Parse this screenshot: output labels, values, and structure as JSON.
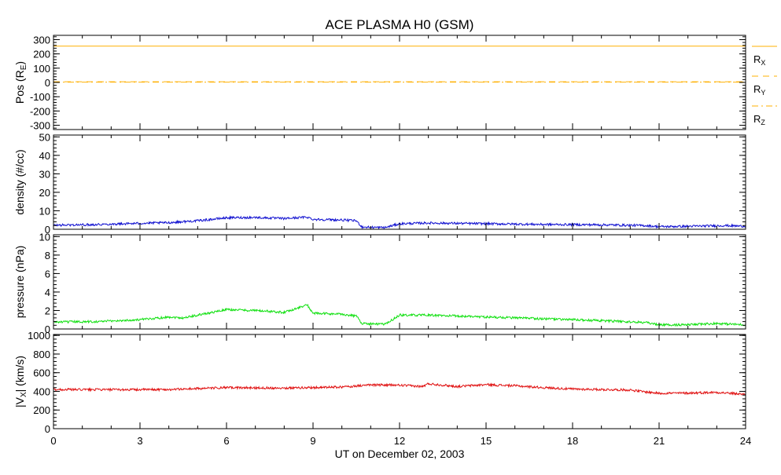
{
  "title": "ACE PLASMA H0 (GSM)",
  "xlabel": "UT on December 02, 2003",
  "colors": {
    "rx": "#ffb000",
    "ry": "#ffb000",
    "rz": "#ffb000",
    "density": "#1010d0",
    "pressure": "#10e010",
    "vx": "#e01010",
    "axes": "#000000"
  },
  "chart_data": [
    {
      "type": "line",
      "id": "pos",
      "ylabel": "Pos (R",
      "ylabel_sub": "E",
      "ylabel_end": ")",
      "xlim": [
        0,
        24
      ],
      "ylim": [
        -330,
        330
      ],
      "yticks": [
        300,
        200,
        100,
        0,
        -100,
        -200,
        -300
      ],
      "legend": "right",
      "series": [
        {
          "name": "R",
          "sub": "X",
          "style": "solid",
          "points": [
            [
              0,
              254
            ],
            [
              24,
              254
            ]
          ]
        },
        {
          "name": "R",
          "sub": "Y",
          "style": "dashed",
          "points": [
            [
              0,
              5
            ],
            [
              24,
              5
            ]
          ]
        },
        {
          "name": "R",
          "sub": "Z",
          "style": "dashdot",
          "points": [
            [
              0,
              2
            ],
            [
              24,
              2
            ]
          ]
        }
      ]
    },
    {
      "type": "line",
      "id": "density",
      "ylabel": "density (#/cc)",
      "xlim": [
        0,
        24
      ],
      "ylim": [
        0,
        51
      ],
      "yticks": [
        50,
        40,
        30,
        20,
        10,
        0
      ],
      "series": [
        {
          "name": "",
          "points": [
            [
              0,
              2.2
            ],
            [
              1,
              2.4
            ],
            [
              2,
              2.8
            ],
            [
              3,
              3.2
            ],
            [
              4,
              3.6
            ],
            [
              5,
              4.6
            ],
            [
              6,
              6.2
            ],
            [
              7,
              6.4
            ],
            [
              8,
              5.8
            ],
            [
              8.8,
              6.6
            ],
            [
              9,
              5.4
            ],
            [
              10,
              5.0
            ],
            [
              10.5,
              4.6
            ],
            [
              10.7,
              1.2
            ],
            [
              11.5,
              0.9
            ],
            [
              12,
              3.0
            ],
            [
              13,
              3.4
            ],
            [
              15,
              3.0
            ],
            [
              17,
              2.6
            ],
            [
              19,
              2.4
            ],
            [
              20.5,
              2.0
            ],
            [
              21,
              1.4
            ],
            [
              22,
              1.6
            ],
            [
              23.3,
              2.0
            ],
            [
              24,
              1.6
            ]
          ]
        }
      ]
    },
    {
      "type": "line",
      "id": "pressure",
      "ylabel": "pressure (nPa)",
      "xlim": [
        0,
        24
      ],
      "ylim": [
        0,
        10.2
      ],
      "yticks": [
        10,
        8,
        6,
        4,
        2,
        0
      ],
      "series": [
        {
          "name": "",
          "points": [
            [
              0,
              0.75
            ],
            [
              1.5,
              0.8
            ],
            [
              3,
              1.0
            ],
            [
              4,
              1.3
            ],
            [
              4.5,
              1.2
            ],
            [
              5,
              1.5
            ],
            [
              6,
              2.1
            ],
            [
              7,
              2.0
            ],
            [
              8,
              1.8
            ],
            [
              8.8,
              2.6
            ],
            [
              9,
              1.7
            ],
            [
              10,
              1.6
            ],
            [
              10.5,
              1.4
            ],
            [
              10.7,
              0.6
            ],
            [
              11.5,
              0.5
            ],
            [
              12,
              1.5
            ],
            [
              13,
              1.5
            ],
            [
              15,
              1.3
            ],
            [
              17,
              1.1
            ],
            [
              19,
              0.9
            ],
            [
              20.5,
              0.7
            ],
            [
              21,
              0.45
            ],
            [
              22,
              0.45
            ],
            [
              23,
              0.6
            ],
            [
              24,
              0.45
            ]
          ]
        }
      ]
    },
    {
      "type": "line",
      "id": "vx",
      "ylabel": "|V",
      "ylabel_sub": "X",
      "ylabel_end": "| (km/s)",
      "xlim": [
        0,
        24
      ],
      "ylim": [
        0,
        1010
      ],
      "yticks": [
        1000,
        800,
        600,
        400,
        200,
        0
      ],
      "xticks": [
        0,
        3,
        6,
        9,
        12,
        15,
        18,
        21,
        24
      ],
      "series": [
        {
          "name": "",
          "points": [
            [
              0,
              420
            ],
            [
              2,
              418
            ],
            [
              4,
              420
            ],
            [
              6,
              440
            ],
            [
              8,
              436
            ],
            [
              10,
              446
            ],
            [
              11,
              470
            ],
            [
              12,
              466
            ],
            [
              12.8,
              452
            ],
            [
              13,
              482
            ],
            [
              14,
              452
            ],
            [
              15,
              472
            ],
            [
              16,
              460
            ],
            [
              17,
              440
            ],
            [
              18,
              425
            ],
            [
              19,
              420
            ],
            [
              20,
              415
            ],
            [
              20.5,
              395
            ],
            [
              21,
              380
            ],
            [
              22,
              382
            ],
            [
              23,
              390
            ],
            [
              24,
              368
            ]
          ]
        }
      ]
    }
  ]
}
